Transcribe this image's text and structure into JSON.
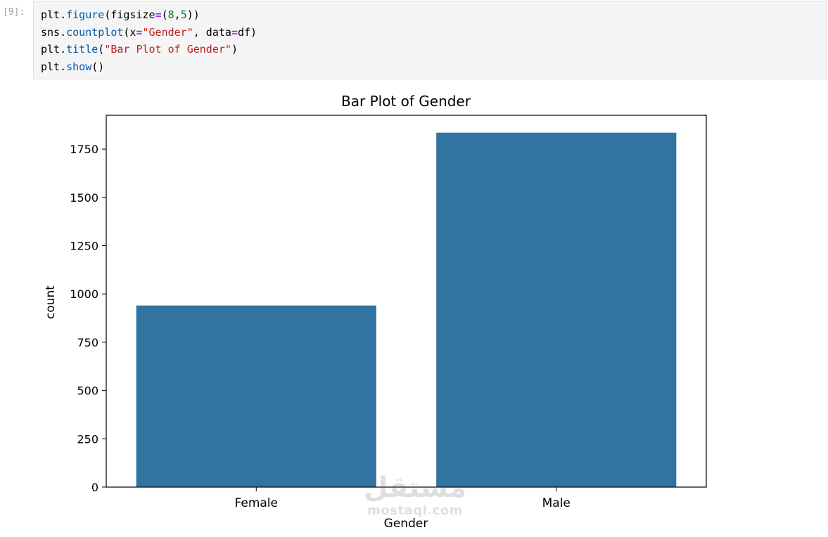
{
  "cell": {
    "prompt": "[9]:",
    "code": [
      [
        {
          "t": "plt."
        },
        {
          "t": "figure",
          "c": "fn"
        },
        {
          "t": "(figsize"
        },
        {
          "t": "=",
          "c": "op"
        },
        {
          "t": "("
        },
        {
          "t": "8",
          "c": "num"
        },
        {
          "t": ","
        },
        {
          "t": "5",
          "c": "num"
        },
        {
          "t": "))"
        }
      ],
      [
        {
          "t": "sns."
        },
        {
          "t": "countplot",
          "c": "fn"
        },
        {
          "t": "(x"
        },
        {
          "t": "=",
          "c": "op"
        },
        {
          "t": "\"Gender\"",
          "c": "str"
        },
        {
          "t": ", data"
        },
        {
          "t": "=",
          "c": "op"
        },
        {
          "t": "df)"
        }
      ],
      [
        {
          "t": "plt."
        },
        {
          "t": "title",
          "c": "fn"
        },
        {
          "t": "("
        },
        {
          "t": "\"Bar Plot of Gender\"",
          "c": "str"
        },
        {
          "t": ")"
        }
      ],
      [
        {
          "t": "plt."
        },
        {
          "t": "show",
          "c": "fn"
        },
        {
          "t": "()"
        }
      ]
    ]
  },
  "chart_data": {
    "type": "bar",
    "title": "Bar Plot of Gender",
    "xlabel": "Gender",
    "ylabel": "count",
    "categories": [
      "Female",
      "Male"
    ],
    "values": [
      940,
      1835
    ],
    "ylim": [
      0,
      1925
    ],
    "yticks": [
      0,
      250,
      500,
      750,
      1000,
      1250,
      1500,
      1750
    ],
    "color": "#3274a1",
    "grid": false
  },
  "watermark": {
    "arabic": "مستقل",
    "latin": "mostaql.com"
  }
}
